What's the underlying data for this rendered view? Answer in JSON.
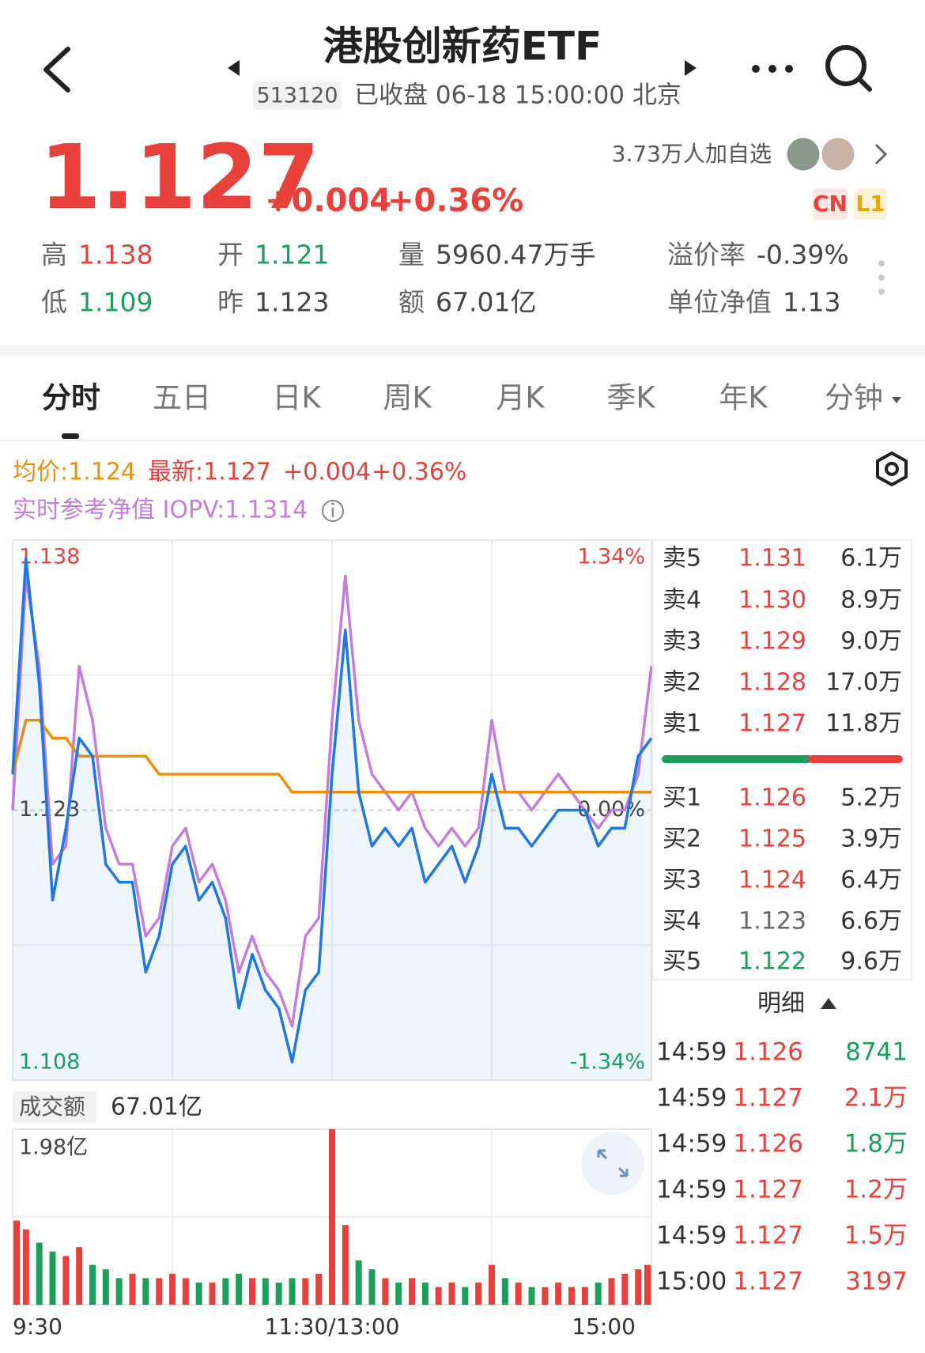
{
  "header": {
    "title": "港股创新药ETF",
    "code": "513120",
    "status": "已收盘 06-18 15:00:00 北京"
  },
  "quote": {
    "price": "1.127",
    "change": "+0.004",
    "change_pct": "+0.36%",
    "followers": "3.73万人加自选",
    "badges": [
      "CN",
      "L1"
    ]
  },
  "stats": [
    {
      "label": "高",
      "value": "1.138",
      "color": "#e8413c"
    },
    {
      "label": "开",
      "value": "1.121",
      "color": "#1aa05a"
    },
    {
      "label": "量",
      "value": "5960.47万手",
      "color": "#444444"
    },
    {
      "label": "溢价率",
      "value": "-0.39%",
      "color": "#444444"
    },
    {
      "label": "低",
      "value": "1.109",
      "color": "#1aa05a"
    },
    {
      "label": "昨",
      "value": "1.123",
      "color": "#444444"
    },
    {
      "label": "额",
      "value": "67.01亿",
      "color": "#444444"
    },
    {
      "label": "单位净值",
      "value": "1.13",
      "color": "#444444"
    }
  ],
  "tabs": [
    "分时",
    "五日",
    "日K",
    "周K",
    "月K",
    "季K",
    "年K",
    "分钟"
  ],
  "legend": {
    "avg": "均价:1.124",
    "latest": "最新:1.127",
    "change": "+0.004",
    "change_pct": "+0.36%",
    "iopv": "实时参考净值 IOPV:1.1314"
  },
  "chart_data": [
    {
      "type": "line",
      "x": [
        0,
        5,
        10,
        15,
        20,
        25,
        30,
        35,
        40,
        45,
        50,
        55,
        60,
        65,
        70,
        75,
        80,
        85,
        90,
        95,
        100,
        105,
        110,
        115,
        120,
        125,
        130,
        135,
        140,
        145,
        150,
        155,
        160,
        165,
        170,
        175,
        180,
        185,
        190,
        195,
        200,
        205,
        210,
        215,
        220,
        225,
        230,
        235,
        240
      ],
      "xlim": [
        0,
        240
      ],
      "xticks": [
        {
          "value": 0,
          "label": "9:30"
        },
        {
          "value": 120,
          "label": "11:30/13:00"
        },
        {
          "value": 240,
          "label": "15:00"
        }
      ],
      "ylim": [
        1.108,
        1.138
      ],
      "yticks": [
        1.138,
        1.123,
        1.108
      ],
      "y2lim": [
        -1.34,
        1.34
      ],
      "y2ticks": [
        {
          "value": 1.34,
          "label": "1.34%"
        },
        {
          "value": 0,
          "label": "0.00%"
        },
        {
          "value": -1.34,
          "label": "-1.34%"
        }
      ],
      "series": [
        {
          "name": "IOPV",
          "color": "#c47ddf",
          "values": [
            1.123,
            1.136,
            1.131,
            1.12,
            1.121,
            1.131,
            1.128,
            1.122,
            1.12,
            1.12,
            1.116,
            1.117,
            1.121,
            1.122,
            1.119,
            1.12,
            1.118,
            1.114,
            1.116,
            1.114,
            1.113,
            1.111,
            1.116,
            1.117,
            1.128,
            1.136,
            1.128,
            1.125,
            1.124,
            1.123,
            1.124,
            1.122,
            1.121,
            1.122,
            1.121,
            1.122,
            1.128,
            1.124,
            1.124,
            1.123,
            1.124,
            1.125,
            1.124,
            1.123,
            1.122,
            1.123,
            1.123,
            1.125,
            1.131
          ]
        },
        {
          "name": "均价",
          "color": "#f0900a",
          "values": [
            1.125,
            1.128,
            1.128,
            1.127,
            1.127,
            1.126,
            1.126,
            1.126,
            1.126,
            1.126,
            1.126,
            1.125,
            1.125,
            1.125,
            1.125,
            1.125,
            1.125,
            1.125,
            1.125,
            1.125,
            1.125,
            1.124,
            1.124,
            1.124,
            1.124,
            1.124,
            1.124,
            1.124,
            1.124,
            1.124,
            1.124,
            1.124,
            1.124,
            1.124,
            1.124,
            1.124,
            1.124,
            1.124,
            1.124,
            1.124,
            1.124,
            1.124,
            1.124,
            1.124,
            1.124,
            1.124,
            1.124,
            1.124,
            1.124
          ]
        },
        {
          "name": "最新",
          "color": "#1f78e0",
          "area": true,
          "values": [
            1.125,
            1.137,
            1.13,
            1.118,
            1.122,
            1.127,
            1.126,
            1.12,
            1.119,
            1.119,
            1.114,
            1.116,
            1.12,
            1.121,
            1.118,
            1.119,
            1.117,
            1.112,
            1.115,
            1.113,
            1.112,
            1.109,
            1.113,
            1.114,
            1.125,
            1.133,
            1.124,
            1.121,
            1.122,
            1.121,
            1.122,
            1.119,
            1.12,
            1.121,
            1.119,
            1.121,
            1.125,
            1.122,
            1.122,
            1.121,
            1.122,
            1.123,
            1.123,
            1.123,
            1.121,
            1.122,
            1.122,
            1.126,
            1.127
          ]
        }
      ]
    },
    {
      "type": "bar",
      "title": "成交额",
      "subtitle": "67.01亿",
      "x": [
        0,
        5,
        10,
        15,
        20,
        25,
        30,
        35,
        40,
        45,
        50,
        55,
        60,
        65,
        70,
        75,
        80,
        85,
        90,
        95,
        100,
        105,
        110,
        115,
        120,
        125,
        130,
        135,
        140,
        145,
        150,
        155,
        160,
        165,
        170,
        175,
        180,
        185,
        190,
        195,
        200,
        205,
        210,
        215,
        220,
        225,
        230,
        235,
        240
      ],
      "xlim": [
        0,
        240
      ],
      "ylim": [
        0,
        1.98
      ],
      "yticks": [
        {
          "value": 1.98,
          "label": "1.98亿"
        }
      ],
      "up_color": "#e8413c",
      "down_color": "#1aa05a",
      "values": [
        0.95,
        0.85,
        0.7,
        0.6,
        0.55,
        0.65,
        0.45,
        0.4,
        0.3,
        0.35,
        0.3,
        0.3,
        0.35,
        0.3,
        0.25,
        0.25,
        0.3,
        0.35,
        0.3,
        0.3,
        0.25,
        0.3,
        0.3,
        0.35,
        1.98,
        0.9,
        0.5,
        0.4,
        0.3,
        0.25,
        0.3,
        0.25,
        0.2,
        0.25,
        0.2,
        0.25,
        0.45,
        0.3,
        0.25,
        0.2,
        0.2,
        0.25,
        0.2,
        0.2,
        0.25,
        0.3,
        0.35,
        0.4,
        0.45
      ]
    }
  ],
  "order_book": {
    "asks": [
      {
        "label": "卖5",
        "price": "1.131",
        "volume": "6.1万",
        "color": "#e8413c"
      },
      {
        "label": "卖4",
        "price": "1.130",
        "volume": "8.9万",
        "color": "#e8413c"
      },
      {
        "label": "卖3",
        "price": "1.129",
        "volume": "9.0万",
        "color": "#e8413c"
      },
      {
        "label": "卖2",
        "price": "1.128",
        "volume": "17.0万",
        "color": "#e8413c"
      },
      {
        "label": "卖1",
        "price": "1.127",
        "volume": "11.8万",
        "color": "#e8413c"
      }
    ],
    "bids": [
      {
        "label": "买1",
        "price": "1.126",
        "volume": "5.2万",
        "color": "#e8413c"
      },
      {
        "label": "买2",
        "price": "1.125",
        "volume": "3.9万",
        "color": "#e8413c"
      },
      {
        "label": "买3",
        "price": "1.124",
        "volume": "6.4万",
        "color": "#e8413c"
      },
      {
        "label": "买4",
        "price": "1.123",
        "volume": "6.6万",
        "color": "#666666"
      },
      {
        "label": "买5",
        "price": "1.122",
        "volume": "9.6万",
        "color": "#1aa05a"
      }
    ]
  },
  "ticks": {
    "title": "明细",
    "rows": [
      {
        "time": "14:59",
        "price": "1.126",
        "volume": "8741",
        "color": "#1aa05a"
      },
      {
        "time": "14:59",
        "price": "1.127",
        "volume": "2.1万",
        "color": "#e8413c"
      },
      {
        "time": "14:59",
        "price": "1.126",
        "volume": "1.8万",
        "color": "#1aa05a"
      },
      {
        "time": "14:59",
        "price": "1.127",
        "volume": "1.2万",
        "color": "#e8413c"
      },
      {
        "time": "14:59",
        "price": "1.127",
        "volume": "1.5万",
        "color": "#e8413c"
      },
      {
        "time": "15:00",
        "price": "1.127",
        "volume": "3197",
        "color": "#e8413c"
      }
    ]
  }
}
